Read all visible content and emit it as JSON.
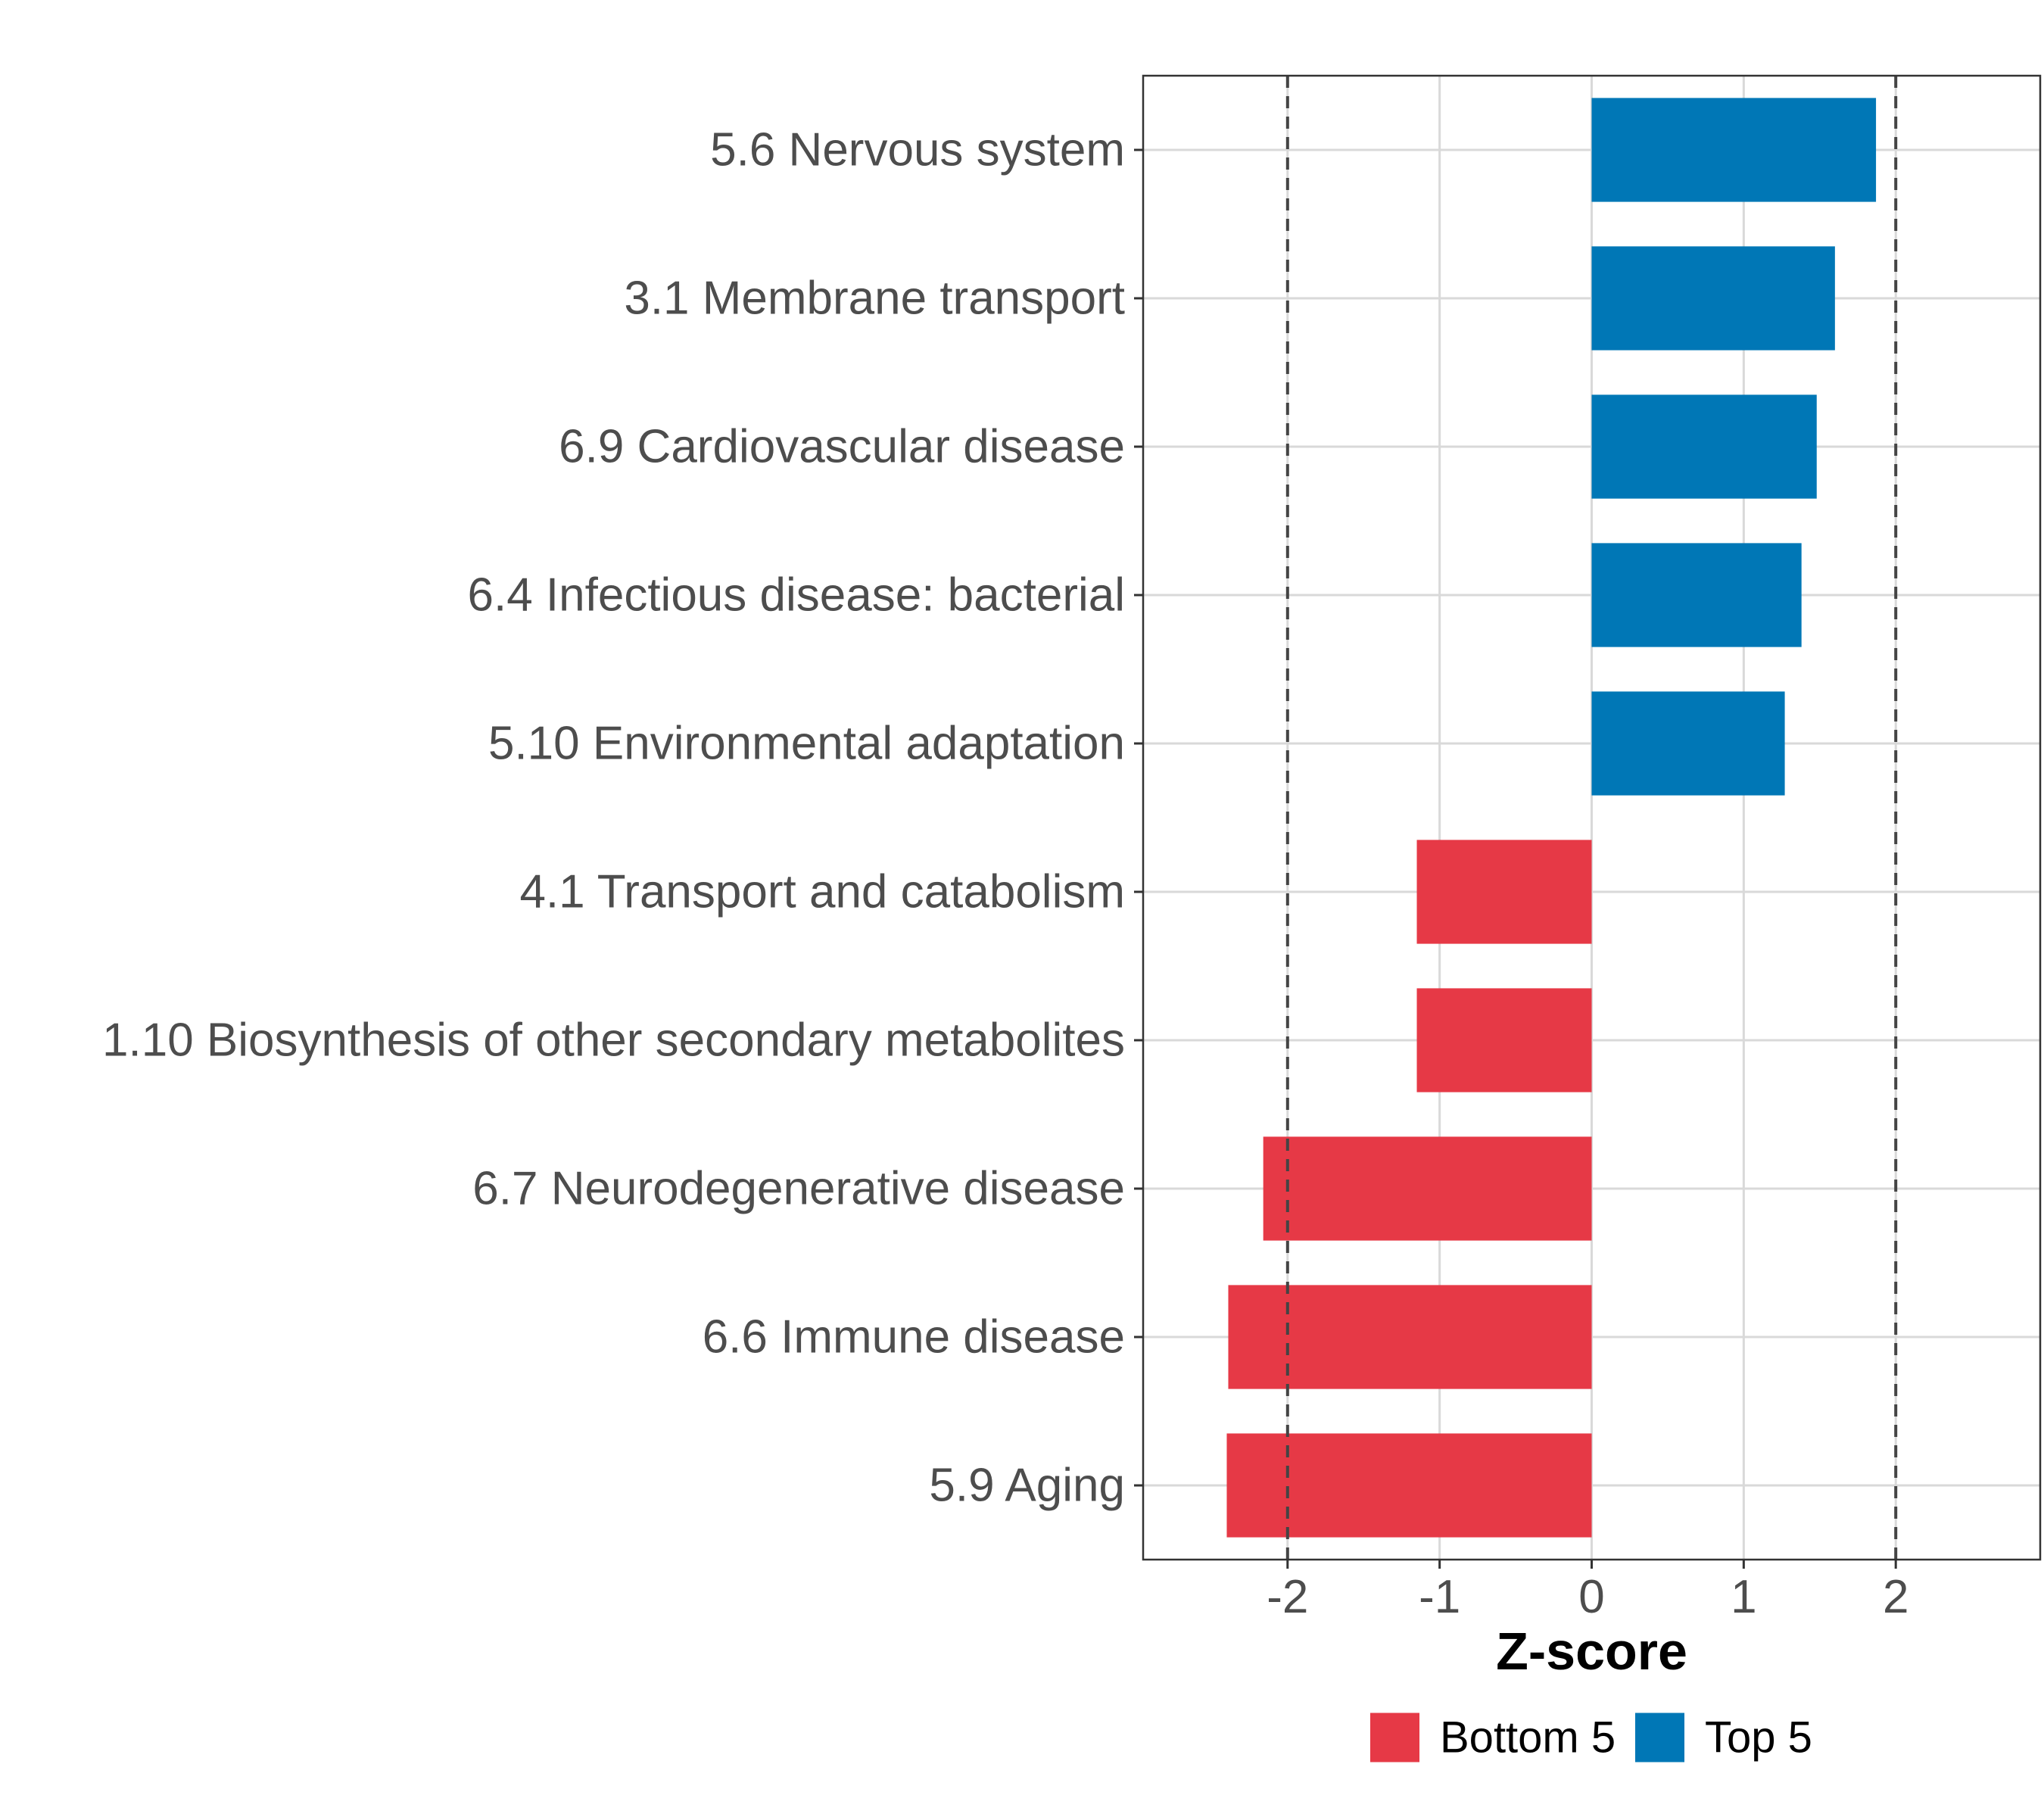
{
  "chart_data": {
    "type": "bar",
    "orientation": "horizontal",
    "categories": [
      "5.6 Nervous system",
      "3.1 Membrane transport",
      "6.9 Cardiovascular disease",
      "6.4 Infectious disease: bacterial",
      "5.10 Environmental adaptation",
      "4.1 Transport and catabolism",
      "1.10 Biosynthesis of other secondary metabolites",
      "6.7 Neurodegenerative disease",
      "6.6 Immune disease",
      "5.9 Aging"
    ],
    "values": [
      1.87,
      1.6,
      1.48,
      1.38,
      1.27,
      -1.15,
      -1.15,
      -2.16,
      -2.39,
      -2.4
    ],
    "groups": [
      "Top 5",
      "Top 5",
      "Top 5",
      "Top 5",
      "Top 5",
      "Bottom 5",
      "Bottom 5",
      "Bottom 5",
      "Bottom 5",
      "Bottom 5"
    ],
    "xlabel": "Z-score",
    "xlim": [
      -2.95,
      2.95
    ],
    "xticks": [
      -2,
      -1,
      0,
      1,
      2
    ],
    "xtick_labels": [
      "-2",
      "-1",
      "0",
      "1",
      "2"
    ],
    "reference_lines": [
      -2,
      2
    ],
    "grid": true,
    "legend": {
      "position": "bottom",
      "items": [
        {
          "label": "Bottom 5",
          "color": "#e63946"
        },
        {
          "label": "Top 5",
          "color": "#0077b6"
        }
      ]
    }
  }
}
